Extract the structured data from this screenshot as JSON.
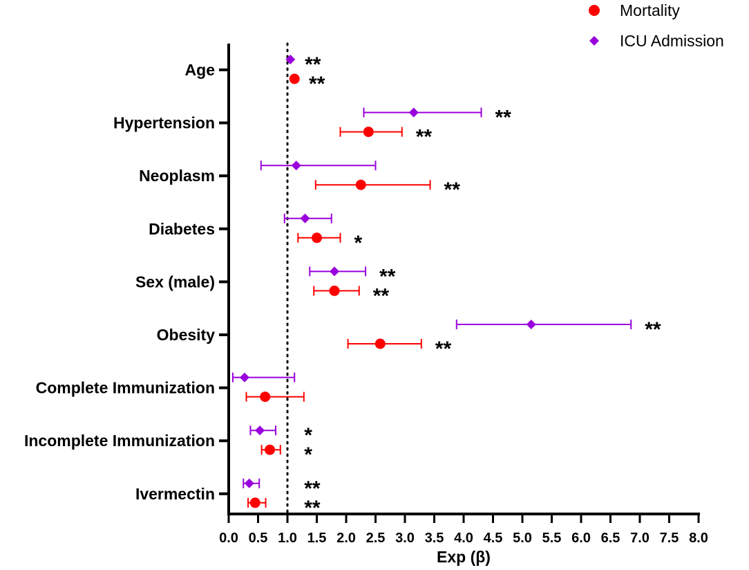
{
  "chart_data": {
    "type": "forest",
    "xlabel": "Exp (β)",
    "xlim": [
      0,
      8
    ],
    "x_ticks": [
      "0.0",
      "0.5",
      "1.0",
      "1.5",
      "2.0",
      "2.5",
      "3.0",
      "3.5",
      "4.0",
      "4.5",
      "5.0",
      "5.5",
      "6.0",
      "6.5",
      "7.0",
      "7.5",
      "8.0"
    ],
    "reference_line": 1.0,
    "colors": {
      "Mortality": "#ff0000",
      "ICU Admission": "#9900dd"
    },
    "legend": [
      {
        "name": "Mortality",
        "marker": "circle",
        "color": "#ff0000"
      },
      {
        "name": "ICU Admission",
        "marker": "diamond",
        "color": "#9900dd"
      }
    ],
    "categories": [
      "Age",
      "Hypertension",
      "Neoplasm",
      "Diabetes",
      "Sex (male)",
      "Obesity",
      "Complete Immunization",
      "Incomplete Immunization",
      "Ivermectin"
    ],
    "series": [
      {
        "name": "ICU Admission",
        "values": [
          {
            "est": 1.05,
            "lo": 1.04,
            "hi": 1.06,
            "sig": "**"
          },
          {
            "est": 3.15,
            "lo": 2.3,
            "hi": 4.3,
            "sig": "**"
          },
          {
            "est": 1.15,
            "lo": 0.55,
            "hi": 2.5,
            "sig": ""
          },
          {
            "est": 1.3,
            "lo": 0.95,
            "hi": 1.75,
            "sig": ""
          },
          {
            "est": 1.8,
            "lo": 1.38,
            "hi": 2.33,
            "sig": "**"
          },
          {
            "est": 5.15,
            "lo": 3.88,
            "hi": 6.85,
            "sig": "**"
          },
          {
            "est": 0.27,
            "lo": 0.07,
            "hi": 1.12,
            "sig": ""
          },
          {
            "est": 0.53,
            "lo": 0.37,
            "hi": 0.8,
            "sig": "*"
          },
          {
            "est": 0.35,
            "lo": 0.25,
            "hi": 0.52,
            "sig": "**"
          }
        ]
      },
      {
        "name": "Mortality",
        "values": [
          {
            "est": 1.12,
            "lo": 1.11,
            "hi": 1.13,
            "sig": "**"
          },
          {
            "est": 2.38,
            "lo": 1.9,
            "hi": 2.95,
            "sig": "**"
          },
          {
            "est": 2.25,
            "lo": 1.48,
            "hi": 3.43,
            "sig": "**"
          },
          {
            "est": 1.5,
            "lo": 1.18,
            "hi": 1.9,
            "sig": "*"
          },
          {
            "est": 1.8,
            "lo": 1.45,
            "hi": 2.22,
            "sig": "**"
          },
          {
            "est": 2.58,
            "lo": 2.03,
            "hi": 3.28,
            "sig": "**"
          },
          {
            "est": 0.62,
            "lo": 0.3,
            "hi": 1.28,
            "sig": ""
          },
          {
            "est": 0.7,
            "lo": 0.56,
            "hi": 0.88,
            "sig": "*"
          },
          {
            "est": 0.45,
            "lo": 0.33,
            "hi": 0.63,
            "sig": "**"
          }
        ]
      }
    ]
  }
}
